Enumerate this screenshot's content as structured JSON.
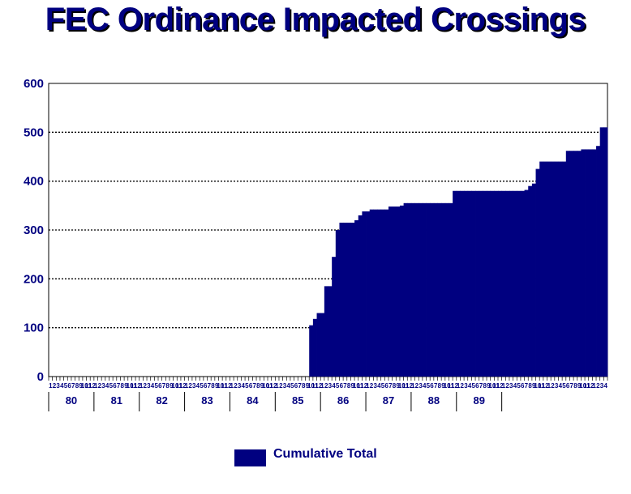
{
  "chart_data": {
    "type": "area",
    "title": "FEC Ordinance Impacted Crossings",
    "xlabel": "",
    "ylabel": "",
    "ylim": [
      0,
      600
    ],
    "yticks": [
      "0",
      "100",
      "200",
      "300",
      "400",
      "500",
      "600"
    ],
    "grid": "horizontal dotted",
    "month_labels": [
      "1",
      "2",
      "3",
      "4",
      "5",
      "6",
      "7",
      "8",
      "9",
      "10",
      "11",
      "12"
    ],
    "years": [
      "80",
      "81",
      "82",
      "83",
      "84",
      "85",
      "86",
      "87",
      "88",
      "89"
    ],
    "series": [
      {
        "name": "Cumulative Total",
        "color": "#000080",
        "values": [
          0,
          0,
          0,
          0,
          0,
          0,
          0,
          0,
          0,
          0,
          0,
          0,
          0,
          0,
          0,
          0,
          0,
          0,
          0,
          0,
          0,
          0,
          0,
          0,
          0,
          0,
          0,
          0,
          0,
          0,
          0,
          0,
          0,
          0,
          0,
          0,
          0,
          0,
          0,
          0,
          0,
          0,
          0,
          0,
          0,
          0,
          0,
          0,
          0,
          0,
          0,
          0,
          0,
          0,
          0,
          0,
          0,
          0,
          0,
          0,
          0,
          0,
          0,
          0,
          0,
          0,
          0,
          0,
          0,
          105,
          118,
          130,
          130,
          185,
          185,
          245,
          300,
          315,
          315,
          315,
          315,
          320,
          330,
          338,
          338,
          342,
          342,
          342,
          342,
          342,
          348,
          348,
          348,
          350,
          355,
          355,
          355,
          355,
          355,
          355,
          355,
          355,
          355,
          355,
          355,
          355,
          355,
          380,
          380,
          380,
          380,
          380,
          380,
          380,
          380,
          380,
          380,
          380,
          380,
          380,
          380,
          380,
          380,
          380,
          380,
          380,
          382,
          390,
          395,
          425,
          440,
          440,
          440,
          440,
          440,
          440,
          440,
          462,
          462,
          462,
          462,
          465,
          465,
          465,
          465,
          472,
          510,
          510
        ]
      }
    ],
    "legend": "bottom-center"
  }
}
